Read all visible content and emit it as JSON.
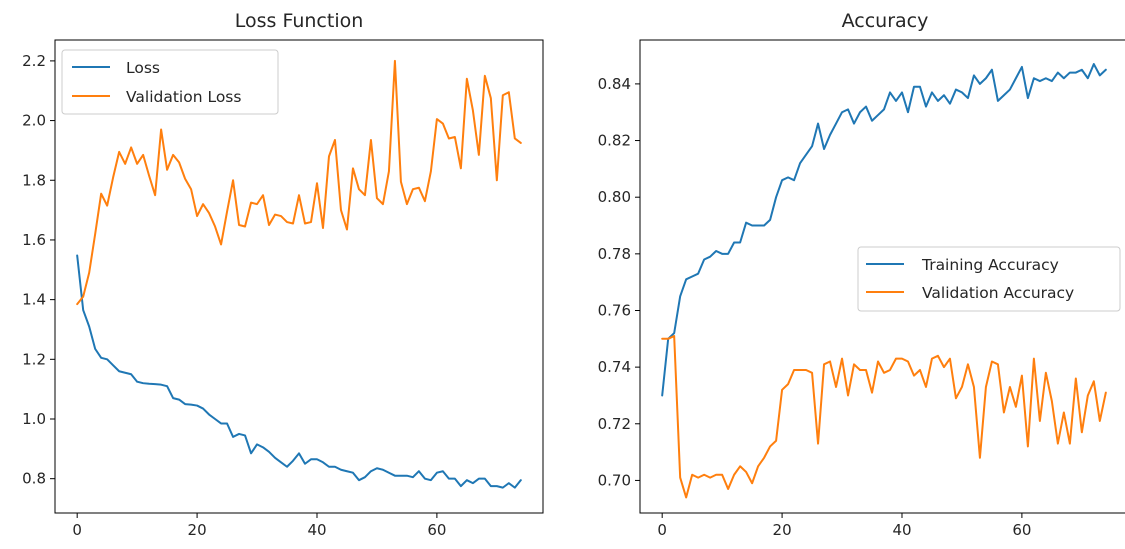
{
  "chart_data": [
    {
      "type": "line",
      "title": "Loss Function",
      "xlabel": "",
      "ylabel": "",
      "xlim": [
        -3.7,
        77.7
      ],
      "ylim": [
        0.685,
        2.27
      ],
      "xticks": [
        0,
        20,
        40,
        60
      ],
      "yticks": [
        0.8,
        1.0,
        1.2,
        1.4,
        1.6,
        1.8,
        2.0,
        2.2
      ],
      "ytick_labels": [
        "0.8",
        "1.0",
        "1.2",
        "1.4",
        "1.6",
        "1.8",
        "2.0",
        "2.2"
      ],
      "grid": false,
      "legend": "upper-left",
      "series": [
        {
          "name": "Loss",
          "color": "#1f77b4",
          "values": [
            1.548,
            1.365,
            1.31,
            1.235,
            1.205,
            1.2,
            1.18,
            1.16,
            1.155,
            1.15,
            1.125,
            1.12,
            1.118,
            1.117,
            1.115,
            1.11,
            1.07,
            1.065,
            1.05,
            1.048,
            1.045,
            1.035,
            1.015,
            1.0,
            0.985,
            0.985,
            0.94,
            0.95,
            0.945,
            0.885,
            0.915,
            0.905,
            0.89,
            0.87,
            0.855,
            0.84,
            0.86,
            0.885,
            0.85,
            0.865,
            0.865,
            0.855,
            0.84,
            0.84,
            0.83,
            0.825,
            0.82,
            0.795,
            0.805,
            0.825,
            0.835,
            0.83,
            0.82,
            0.81,
            0.81,
            0.81,
            0.805,
            0.825,
            0.8,
            0.795,
            0.82,
            0.825,
            0.8,
            0.8,
            0.775,
            0.795,
            0.785,
            0.8,
            0.8,
            0.775,
            0.775,
            0.77,
            0.785,
            0.77,
            0.795
          ]
        },
        {
          "name": "Validation Loss",
          "color": "#ff7f0e",
          "values": [
            1.385,
            1.41,
            1.49,
            1.62,
            1.755,
            1.715,
            1.81,
            1.895,
            1.855,
            1.91,
            1.855,
            1.885,
            1.815,
            1.75,
            1.97,
            1.835,
            1.885,
            1.86,
            1.805,
            1.77,
            1.68,
            1.72,
            1.69,
            1.645,
            1.585,
            1.695,
            1.8,
            1.65,
            1.645,
            1.725,
            1.72,
            1.75,
            1.65,
            1.685,
            1.68,
            1.66,
            1.655,
            1.75,
            1.655,
            1.66,
            1.79,
            1.64,
            1.88,
            1.935,
            1.7,
            1.635,
            1.84,
            1.77,
            1.75,
            1.935,
            1.74,
            1.72,
            1.83,
            2.2,
            1.795,
            1.72,
            1.77,
            1.775,
            1.73,
            1.83,
            2.005,
            1.99,
            1.94,
            1.945,
            1.84,
            2.14,
            2.035,
            1.885,
            2.15,
            2.075,
            1.8,
            2.085,
            2.095,
            1.94,
            1.925
          ]
        }
      ]
    },
    {
      "type": "line",
      "title": "Accuracy",
      "xlabel": "",
      "ylabel": "",
      "xlim": [
        -3.7,
        77.7
      ],
      "ylim": [
        0.6885,
        0.8555
      ],
      "xticks": [
        0,
        20,
        40,
        60
      ],
      "yticks": [
        0.7,
        0.72,
        0.74,
        0.76,
        0.78,
        0.8,
        0.82,
        0.84
      ],
      "ytick_labels": [
        "0.70",
        "0.72",
        "0.74",
        "0.76",
        "0.78",
        "0.80",
        "0.82",
        "0.84"
      ],
      "grid": false,
      "legend": "center-right",
      "series": [
        {
          "name": "Training Accuracy",
          "color": "#1f77b4",
          "values": [
            0.73,
            0.75,
            0.752,
            0.765,
            0.771,
            0.772,
            0.773,
            0.778,
            0.779,
            0.781,
            0.78,
            0.78,
            0.784,
            0.784,
            0.791,
            0.79,
            0.79,
            0.79,
            0.792,
            0.8,
            0.806,
            0.807,
            0.806,
            0.812,
            0.815,
            0.818,
            0.826,
            0.817,
            0.822,
            0.826,
            0.83,
            0.831,
            0.826,
            0.83,
            0.832,
            0.827,
            0.829,
            0.831,
            0.837,
            0.834,
            0.837,
            0.83,
            0.839,
            0.839,
            0.832,
            0.837,
            0.834,
            0.836,
            0.833,
            0.838,
            0.837,
            0.835,
            0.843,
            0.84,
            0.842,
            0.845,
            0.834,
            0.836,
            0.838,
            0.842,
            0.846,
            0.835,
            0.842,
            0.841,
            0.842,
            0.841,
            0.844,
            0.842,
            0.844,
            0.844,
            0.845,
            0.842,
            0.847,
            0.843,
            0.845
          ]
        },
        {
          "name": "Validation Accuracy",
          "color": "#ff7f0e",
          "values": [
            0.75,
            0.75,
            0.751,
            0.701,
            0.694,
            0.702,
            0.701,
            0.702,
            0.701,
            0.702,
            0.702,
            0.697,
            0.702,
            0.705,
            0.703,
            0.699,
            0.705,
            0.708,
            0.712,
            0.714,
            0.732,
            0.734,
            0.739,
            0.739,
            0.739,
            0.738,
            0.713,
            0.741,
            0.742,
            0.733,
            0.743,
            0.73,
            0.741,
            0.739,
            0.739,
            0.731,
            0.742,
            0.738,
            0.739,
            0.743,
            0.743,
            0.742,
            0.737,
            0.739,
            0.733,
            0.743,
            0.744,
            0.74,
            0.743,
            0.729,
            0.733,
            0.741,
            0.733,
            0.708,
            0.733,
            0.742,
            0.741,
            0.724,
            0.733,
            0.726,
            0.737,
            0.712,
            0.743,
            0.721,
            0.738,
            0.728,
            0.713,
            0.724,
            0.713,
            0.736,
            0.717,
            0.73,
            0.735,
            0.721,
            0.731
          ]
        }
      ]
    }
  ]
}
